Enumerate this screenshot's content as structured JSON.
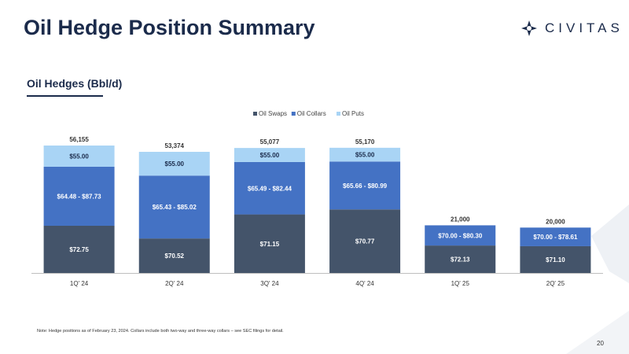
{
  "slide": {
    "title": "Oil Hedge Position Summary",
    "section_title": "Oil Hedges (Bbl/d)",
    "note": "Note: Hedge positions as of February 23, 2024. Collars include both two-way and three-way collars – see SEC filings for detail.",
    "page_number": "20"
  },
  "logo": {
    "text": "CIVITAS"
  },
  "colors": {
    "title": "#1b2b4b",
    "swaps": "#44546a",
    "collars": "#4472c4",
    "puts": "#a9d4f5",
    "decor": "#eef1f5"
  },
  "chart_data": {
    "type": "bar",
    "stacked": true,
    "categories": [
      "1Q' 24",
      "2Q' 24",
      "3Q' 24",
      "4Q' 24",
      "1Q' 25",
      "2Q' 25"
    ],
    "totals": [
      "56,155",
      "53,374",
      "55,077",
      "55,170",
      "21,000",
      "20,000"
    ],
    "total_values": [
      56155,
      53374,
      55077,
      55170,
      21000,
      20000
    ],
    "legend_position": "top-center",
    "series": [
      {
        "name": "Oil Swaps",
        "color": "#44546a",
        "values": [
          20800,
          15200,
          25800,
          28000,
          12100,
          11800
        ],
        "labels": [
          "$72.75",
          "$70.52",
          "$71.15",
          "$70.77",
          "$72.13",
          "$71.10"
        ]
      },
      {
        "name": "Oil Collars",
        "color": "#4472c4",
        "values": [
          26000,
          27700,
          23100,
          21100,
          8900,
          8200
        ],
        "labels": [
          "$64.48 - $87.73",
          "$65.43 - $85.02",
          "$65.49 - $82.44",
          "$65.66 - $80.99",
          "$70.00 - $80.30",
          "$70.00 - $78.61"
        ]
      },
      {
        "name": "Oil Puts",
        "color": "#a9d4f5",
        "values": [
          9355,
          10474,
          6177,
          6070,
          0,
          0
        ],
        "labels": [
          "$55.00",
          "$55.00",
          "$55.00",
          "$55.00",
          "",
          ""
        ]
      }
    ],
    "ylim": [
      0,
      56155
    ],
    "grid": false
  }
}
